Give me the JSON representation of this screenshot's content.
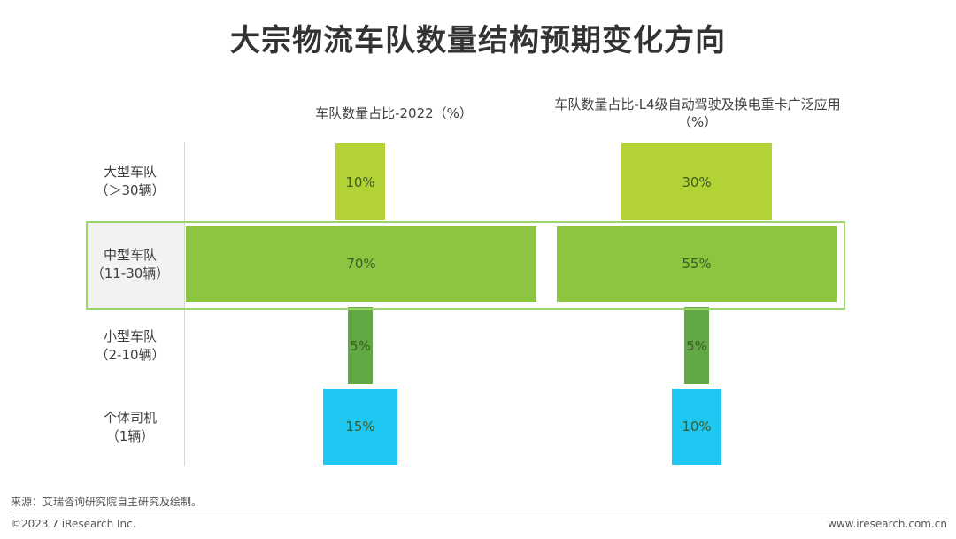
{
  "title": "大宗物流车队数量结构预期变化方向",
  "chart_data": {
    "type": "bar",
    "column_headers": [
      "车队数量占比-2022（%）",
      "车队数量占比-L4级自动驾驶及换电重卡广泛应用（%）"
    ],
    "column_header_lines": [
      [
        "车队数量占比-2022（%）"
      ],
      [
        "车队数量占比-L4级自动驾驶及换电重卡广泛应用",
        "（%）"
      ]
    ],
    "categories": [
      {
        "line1": "大型车队",
        "line2": "（＞30辆）"
      },
      {
        "line1": "中型车队",
        "line2": "（11-30辆）"
      },
      {
        "line1": "小型车队",
        "line2": "（2-10辆）"
      },
      {
        "line1": "个体司机",
        "line2": "（1辆）"
      }
    ],
    "series": [
      {
        "values": [
          10,
          70,
          5,
          15
        ],
        "labels": [
          "10%",
          "70%",
          "5%",
          "15%"
        ]
      },
      {
        "values": [
          30,
          55,
          5,
          10
        ],
        "labels": [
          "30%",
          "55%",
          "5%",
          "10%"
        ]
      }
    ],
    "highlighted_category": 1,
    "colors": [
      "#b2d235",
      "#8cc540",
      "#62a844",
      "#1ec8f2"
    ]
  },
  "footer": {
    "source": "来源：艾瑞咨询研究院自主研究及绘制。",
    "copyright": "©2023.7 iResearch Inc.",
    "website": "www.iresearch.com.cn"
  }
}
